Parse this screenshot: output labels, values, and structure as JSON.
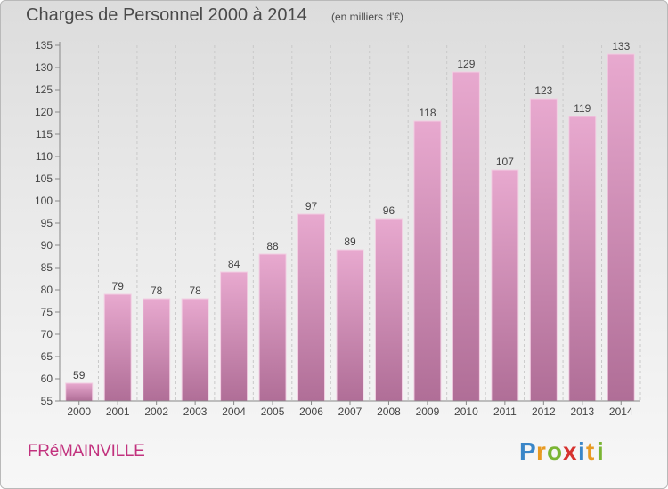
{
  "title": "Charges de Personnel 2000 à 2014",
  "subtitle": "(en milliers d'€)",
  "place": "FRéMAINVILLE",
  "logo_text": "Proxiti",
  "colors": {
    "bar_top": "#e8a9cf",
    "bar_bottom": "#b06e97",
    "place": "#c2327e",
    "text": "#4a4a4a"
  },
  "chart_data": {
    "type": "bar",
    "title": "Charges de Personnel 2000 à 2014",
    "subtitle": "(en milliers d'€)",
    "categories": [
      "2000",
      "2001",
      "2002",
      "2003",
      "2004",
      "2005",
      "2006",
      "2007",
      "2008",
      "2009",
      "2010",
      "2011",
      "2012",
      "2013",
      "2014"
    ],
    "values": [
      59,
      79,
      78,
      78,
      84,
      88,
      97,
      89,
      96,
      118,
      129,
      107,
      123,
      119,
      133
    ],
    "ylim": [
      55,
      135
    ],
    "yticks": [
      55,
      60,
      65,
      70,
      75,
      80,
      85,
      90,
      95,
      100,
      105,
      110,
      115,
      120,
      125,
      130,
      135
    ],
    "grid": "vertical dashed",
    "legend": "none"
  }
}
